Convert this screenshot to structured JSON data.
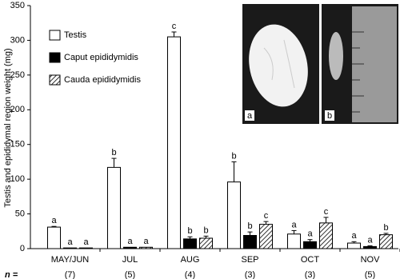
{
  "chart_data": {
    "type": "bar",
    "ylabel": "Testis and epididymal region weight (mg)",
    "categories": [
      "MAY/JUN",
      "JUL",
      "AUG",
      "SEP",
      "OCT",
      "NOV"
    ],
    "series": [
      {
        "name": "Testis",
        "color": "#ffffff",
        "pattern": "solid",
        "values": [
          31,
          117,
          305,
          96,
          21,
          8
        ],
        "errors": [
          1,
          13,
          7,
          29,
          5,
          2
        ],
        "letters": [
          "a",
          "b",
          "c",
          "b",
          "a",
          "a"
        ]
      },
      {
        "name": "Caput epididymidis",
        "color": "#000000",
        "pattern": "solid",
        "values": [
          1,
          2,
          14,
          19,
          10,
          3
        ],
        "errors": [
          0,
          0,
          3,
          5,
          3,
          1
        ],
        "letters": [
          "a",
          "a",
          "b",
          "b",
          "a",
          "a"
        ]
      },
      {
        "name": "Cauda epididymidis",
        "color": "#ffffff",
        "pattern": "hatch",
        "values": [
          1,
          2,
          15,
          35,
          37,
          20
        ],
        "errors": [
          0,
          0,
          3,
          4,
          8,
          2
        ],
        "letters": [
          "a",
          "a",
          "b",
          "c",
          "c",
          "b"
        ]
      }
    ],
    "ylim": [
      0,
      350
    ],
    "yticks": [
      0,
      50,
      100,
      150,
      200,
      250,
      300,
      350
    ],
    "grid": false,
    "legend": "upper-left",
    "n_label": "n =",
    "n_values": [
      "(7)",
      "(5)",
      "(4)",
      "(3)",
      "(3)",
      "(5)"
    ],
    "inset": {
      "panels": [
        "a",
        "b"
      ]
    }
  }
}
